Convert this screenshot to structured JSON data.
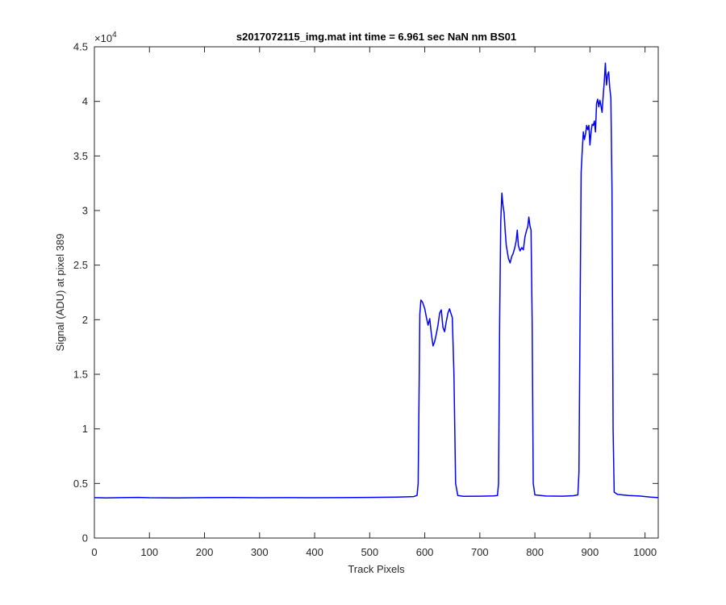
{
  "chart_data": {
    "type": "line",
    "title": "s2017072115_img.mat int time = 6.961 sec  NaN nm BS01",
    "xlabel": "Track Pixels",
    "ylabel": "Signal (ADU) at pixel 389",
    "xlim": [
      0,
      1024
    ],
    "ylim": [
      0,
      45000
    ],
    "x_ticks": [
      0,
      100,
      200,
      300,
      400,
      500,
      600,
      700,
      800,
      900,
      1000
    ],
    "x_tick_labels": [
      "0",
      "100",
      "200",
      "300",
      "400",
      "500",
      "600",
      "700",
      "800",
      "900",
      "1000"
    ],
    "y_ticks": [
      0,
      5000,
      10000,
      15000,
      20000,
      25000,
      30000,
      35000,
      40000,
      45000
    ],
    "y_tick_labels": [
      "0",
      "0.5",
      "1",
      "1.5",
      "2",
      "2.5",
      "3",
      "3.5",
      "4",
      "4.5"
    ],
    "y_exponent_label": "×10",
    "y_exponent_power": "4",
    "grid": false,
    "series": [
      {
        "color": "#0000ff",
        "points": [
          [
            0,
            3700
          ],
          [
            20,
            3680
          ],
          [
            50,
            3700
          ],
          [
            80,
            3720
          ],
          [
            100,
            3690
          ],
          [
            150,
            3680
          ],
          [
            200,
            3700
          ],
          [
            250,
            3710
          ],
          [
            300,
            3690
          ],
          [
            350,
            3700
          ],
          [
            400,
            3690
          ],
          [
            450,
            3700
          ],
          [
            500,
            3720
          ],
          [
            550,
            3750
          ],
          [
            580,
            3800
          ],
          [
            586,
            3900
          ],
          [
            588,
            5000
          ],
          [
            590,
            15000
          ],
          [
            591,
            20500
          ],
          [
            593,
            21800
          ],
          [
            596,
            21600
          ],
          [
            600,
            21000
          ],
          [
            603,
            20200
          ],
          [
            606,
            19500
          ],
          [
            609,
            20100
          ],
          [
            612,
            18700
          ],
          [
            615,
            17600
          ],
          [
            618,
            18000
          ],
          [
            621,
            18700
          ],
          [
            624,
            19500
          ],
          [
            627,
            20600
          ],
          [
            630,
            20900
          ],
          [
            633,
            19300
          ],
          [
            636,
            18900
          ],
          [
            639,
            19800
          ],
          [
            642,
            20600
          ],
          [
            645,
            21000
          ],
          [
            648,
            20500
          ],
          [
            650,
            20200
          ],
          [
            653,
            15000
          ],
          [
            656,
            5000
          ],
          [
            660,
            3900
          ],
          [
            670,
            3820
          ],
          [
            700,
            3830
          ],
          [
            725,
            3860
          ],
          [
            732,
            3900
          ],
          [
            734,
            5000
          ],
          [
            736,
            20000
          ],
          [
            738,
            29000
          ],
          [
            740,
            31600
          ],
          [
            742,
            30500
          ],
          [
            744,
            29800
          ],
          [
            746,
            28200
          ],
          [
            748,
            26800
          ],
          [
            750,
            26200
          ],
          [
            752,
            25600
          ],
          [
            755,
            25200
          ],
          [
            758,
            25800
          ],
          [
            760,
            26000
          ],
          [
            763,
            26500
          ],
          [
            766,
            27200
          ],
          [
            768,
            28200
          ],
          [
            770,
            26800
          ],
          [
            773,
            26300
          ],
          [
            776,
            26600
          ],
          [
            779,
            26400
          ],
          [
            782,
            27600
          ],
          [
            785,
            28200
          ],
          [
            787,
            28500
          ],
          [
            789,
            29400
          ],
          [
            791,
            28600
          ],
          [
            793,
            28200
          ],
          [
            795,
            20000
          ],
          [
            797,
            5000
          ],
          [
            800,
            3950
          ],
          [
            820,
            3850
          ],
          [
            850,
            3830
          ],
          [
            870,
            3880
          ],
          [
            878,
            3950
          ],
          [
            880,
            6000
          ],
          [
            882,
            20000
          ],
          [
            884,
            33500
          ],
          [
            886,
            35500
          ],
          [
            888,
            37200
          ],
          [
            890,
            36500
          ],
          [
            892,
            37000
          ],
          [
            894,
            37800
          ],
          [
            896,
            37400
          ],
          [
            898,
            37800
          ],
          [
            900,
            36000
          ],
          [
            902,
            37200
          ],
          [
            904,
            37900
          ],
          [
            906,
            37800
          ],
          [
            908,
            38200
          ],
          [
            910,
            37200
          ],
          [
            912,
            39800
          ],
          [
            914,
            40200
          ],
          [
            916,
            39500
          ],
          [
            918,
            40100
          ],
          [
            920,
            39600
          ],
          [
            922,
            39000
          ],
          [
            924,
            40500
          ],
          [
            926,
            41800
          ],
          [
            928,
            43500
          ],
          [
            930,
            41500
          ],
          [
            932,
            42400
          ],
          [
            934,
            42700
          ],
          [
            936,
            41200
          ],
          [
            938,
            40300
          ],
          [
            940,
            32000
          ],
          [
            942,
            10000
          ],
          [
            944,
            4200
          ],
          [
            950,
            4000
          ],
          [
            970,
            3900
          ],
          [
            990,
            3850
          ],
          [
            1010,
            3750
          ],
          [
            1024,
            3700
          ]
        ]
      }
    ]
  }
}
